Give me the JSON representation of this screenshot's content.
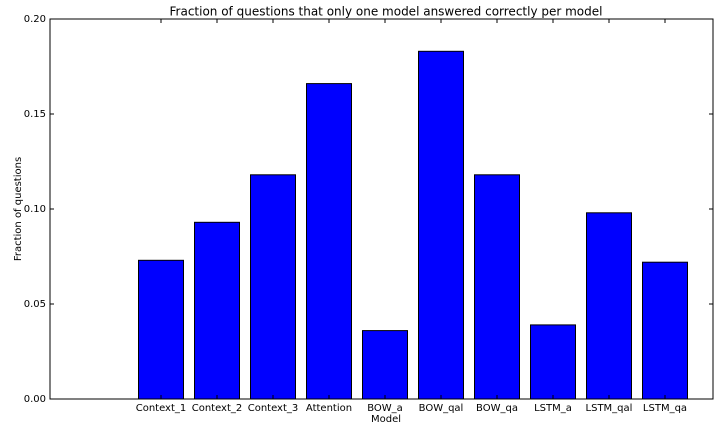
{
  "chart_data": {
    "type": "bar",
    "title": "Fraction of questions that only one model answered correctly per model",
    "x_label": "Model",
    "y_label": "Fraction of questions",
    "categories": [
      "Context_1",
      "Context_2",
      "Context_3",
      "Attention",
      "BOW_a",
      "BOW_qal",
      "BOW_qa",
      "LSTM_a",
      "LSTM_qal",
      "LSTM_qa"
    ],
    "values": [
      0.073,
      0.093,
      0.118,
      0.166,
      0.036,
      0.183,
      0.118,
      0.039,
      0.098,
      0.072
    ],
    "color": "#0000ff",
    "ylim": [
      0,
      0.2
    ],
    "yticks": [
      {
        "value": 0,
        "label": "0.00"
      },
      {
        "value": 0.05,
        "label": "0.05"
      },
      {
        "value": 0.1,
        "label": "0.10"
      },
      {
        "value": 0.15,
        "label": "0.15"
      },
      {
        "value": 0.2,
        "label": "0.20"
      }
    ]
  }
}
